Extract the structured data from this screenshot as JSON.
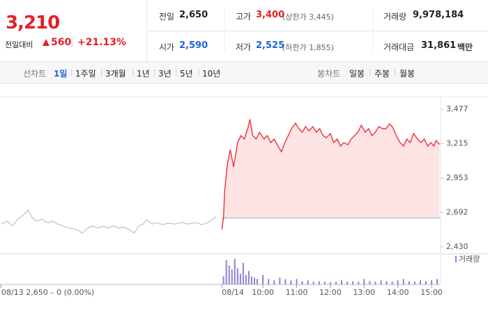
{
  "quote": {
    "price": "3,210",
    "change_label": "전일대비",
    "change": "560",
    "change_pct": "+21.13%"
  },
  "summary": [
    {
      "label": "전일",
      "value": "2,650"
    },
    {
      "label": "고가",
      "value": "3,400",
      "note": "(상한가 3,445)"
    },
    {
      "label": "거래량",
      "value": "9,978,184"
    },
    {
      "label": "시가",
      "value": "2,590"
    },
    {
      "label": "저가",
      "value": "2,525",
      "note": "(하한가 1,855)"
    },
    {
      "label": "거래대금",
      "value": "31,861",
      "unit": "백만"
    }
  ],
  "tabs": {
    "line_label": "선차트",
    "line": [
      "1일",
      "1주일",
      "3개월",
      "1년",
      "3년",
      "5년",
      "10년"
    ],
    "candle_label": "봉차트",
    "candle": [
      "일봉",
      "주봉",
      "월봉"
    ]
  },
  "chart_data": [
    {
      "type": "line",
      "annotation": "08/13  2,650 – 0 (0.00%)",
      "baseline": 2650,
      "fill": "#fde3e4",
      "grid": false,
      "xlim": [
        -405,
        376
      ],
      "xticks": [
        {
          "value": -13,
          "label": "08/14"
        },
        {
          "value": 60,
          "label": "10:00"
        },
        {
          "value": 120,
          "label": "11:00"
        },
        {
          "value": 180,
          "label": "12:00"
        },
        {
          "value": 240,
          "label": "13:00"
        },
        {
          "value": 300,
          "label": "14:00"
        },
        {
          "value": 360,
          "label": "15:00"
        }
      ],
      "ylim": [
        2430,
        3477
      ],
      "yticks": [
        {
          "value": 2430,
          "label": "2,430"
        },
        {
          "value": 2692,
          "label": "2,692"
        },
        {
          "value": 2953,
          "label": "2,953"
        },
        {
          "value": 3215,
          "label": "3,215"
        },
        {
          "value": 3477,
          "label": "3,477"
        }
      ],
      "series": [
        {
          "color": "#c8c8c8",
          "x": [
            -405,
            -395,
            -385,
            -376,
            -367,
            -357,
            -351,
            -343,
            -333,
            -323,
            -314,
            -305,
            -295,
            -283,
            -271,
            -261,
            -252,
            -243,
            -233,
            -223,
            -215,
            -206,
            -196,
            -186,
            -178,
            -169,
            -161,
            -153,
            -147,
            -137,
            -128,
            -119,
            -109,
            -97,
            -85,
            -72,
            -60,
            -48,
            -38,
            -29,
            -23
          ],
          "values": [
            2604,
            2626,
            2589,
            2641,
            2668,
            2710,
            2657,
            2626,
            2641,
            2615,
            2626,
            2604,
            2589,
            2573,
            2562,
            2536,
            2573,
            2589,
            2573,
            2589,
            2573,
            2589,
            2573,
            2580,
            2562,
            2536,
            2589,
            2604,
            2636,
            2604,
            2615,
            2599,
            2610,
            2604,
            2615,
            2604,
            2615,
            2599,
            2615,
            2641,
            2657
          ]
        },
        {
          "color": "#ea3339",
          "x": [
            -13,
            -10,
            -8,
            -3,
            2,
            8,
            15,
            21,
            27,
            33,
            37,
            42,
            48,
            54,
            62,
            68,
            74,
            80,
            87,
            93,
            99,
            105,
            111,
            118,
            124,
            130,
            136,
            142,
            149,
            155,
            161,
            167,
            173,
            180,
            186,
            192,
            198,
            204,
            211,
            217,
            223,
            229,
            235,
            242,
            248,
            254,
            260,
            266,
            273,
            279,
            285,
            291,
            297,
            304,
            310,
            316,
            322,
            328,
            335,
            341,
            347,
            353,
            359,
            364,
            368,
            374
          ],
          "values": [
            2562,
            2650,
            2853,
            3064,
            3170,
            3038,
            3223,
            3276,
            3250,
            3329,
            3400,
            3276,
            3250,
            3302,
            3250,
            3276,
            3223,
            3250,
            3197,
            3154,
            3223,
            3276,
            3329,
            3371,
            3329,
            3302,
            3345,
            3313,
            3345,
            3302,
            3329,
            3276,
            3260,
            3292,
            3223,
            3250,
            3197,
            3223,
            3207,
            3250,
            3276,
            3302,
            3355,
            3302,
            3329,
            3276,
            3302,
            3345,
            3329,
            3329,
            3366,
            3339,
            3276,
            3223,
            3197,
            3250,
            3223,
            3292,
            3250,
            3223,
            3250,
            3197,
            3223,
            3197,
            3239,
            3210
          ]
        }
      ]
    },
    {
      "type": "bar",
      "legend": "거래량",
      "color": "#8f7fd3",
      "ylim": [
        0,
        100
      ],
      "x": [
        -10,
        -5,
        0,
        5,
        10,
        15,
        20,
        25,
        30,
        35,
        40,
        45,
        50,
        60,
        70,
        80,
        90,
        100,
        110,
        120,
        130,
        140,
        150,
        160,
        170,
        180,
        190,
        200,
        210,
        220,
        230,
        240,
        250,
        260,
        270,
        280,
        290,
        300,
        310,
        320,
        330,
        340,
        350,
        360,
        370
      ],
      "values": [
        30,
        90,
        70,
        55,
        95,
        60,
        40,
        80,
        35,
        50,
        30,
        25,
        20,
        35,
        20,
        15,
        25,
        20,
        15,
        20,
        12,
        15,
        10,
        12,
        10,
        8,
        10,
        15,
        10,
        12,
        10,
        20,
        12,
        10,
        15,
        12,
        10,
        15,
        20,
        12,
        10,
        15,
        12,
        15,
        20
      ]
    }
  ]
}
